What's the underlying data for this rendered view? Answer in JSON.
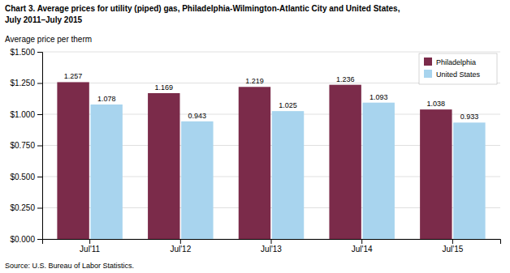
{
  "chart_data": {
    "type": "bar",
    "title": "Chart 3. Average prices for utility (piped) gas, Philadelphia-Wilmington-Atlantic City and United States,\nJuly 2011–July 2015",
    "ylabel": "Average price per therm",
    "source": "Source: U.S. Bureau of Labor Statistics.",
    "categories": [
      "Jul'11",
      "Jul'12",
      "Jul'13",
      "Jul'14",
      "Jul'15"
    ],
    "series": [
      {
        "name": "Philadelphia",
        "color": "#7B2B4A",
        "values": [
          1.257,
          1.169,
          1.219,
          1.236,
          1.038
        ]
      },
      {
        "name": "United States",
        "color": "#A8D4EE",
        "values": [
          1.078,
          0.943,
          1.025,
          1.093,
          0.933
        ]
      }
    ],
    "ylim": [
      0,
      1.5
    ],
    "yticks": [
      {
        "value": 0.0,
        "label": "$0.000"
      },
      {
        "value": 0.25,
        "label": "$0.250"
      },
      {
        "value": 0.5,
        "label": "$0.500"
      },
      {
        "value": 0.75,
        "label": "$0.750"
      },
      {
        "value": 1.0,
        "label": "$1.000"
      },
      {
        "value": 1.25,
        "label": "$1.250"
      },
      {
        "value": 1.5,
        "label": "$1.500"
      }
    ],
    "grid": true,
    "legend": "upper right",
    "data_labels": true
  }
}
